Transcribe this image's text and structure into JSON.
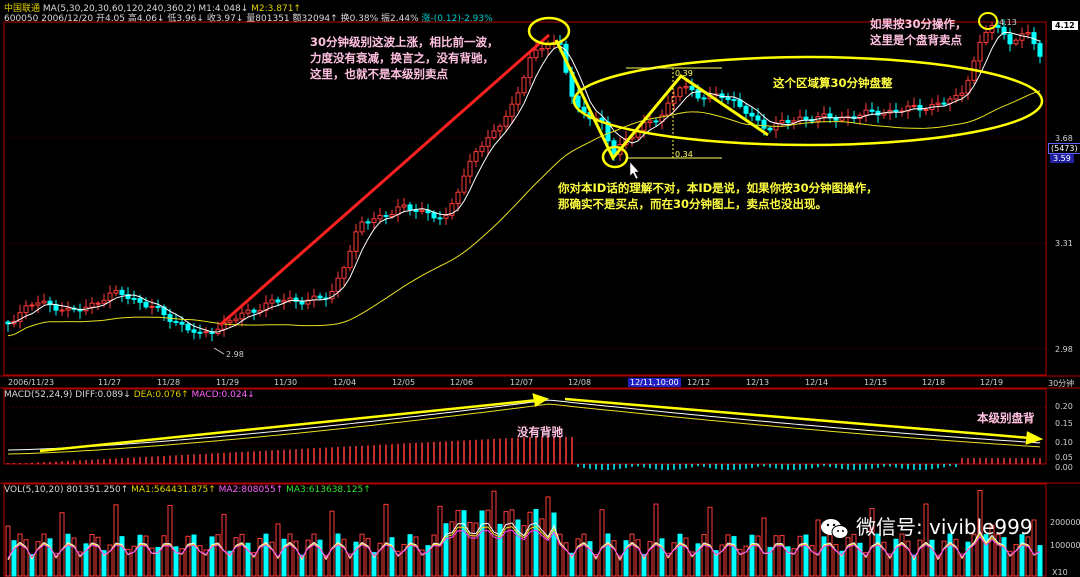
{
  "header": {
    "stock_name": "中国联通",
    "ma_label": "MA(5,30,20,30,60,120,240,360,2)",
    "m1": "M1:4.048↓",
    "m2": "M2:3.871↑",
    "code_date": "600050 2006/12/20",
    "open": "开4.05",
    "high": "高4.06↓",
    "low": "低3.96↓",
    "close": "收3.97↓",
    "volume": "量801351",
    "amount": "额32094↑",
    "turnover": "换0.38%",
    "amplitude": "振2.44%",
    "change": "涨-(0.12)-2.93%"
  },
  "price_axis": {
    "labels": [
      "4.12",
      "3.68",
      "3.59",
      "3.31",
      "2.98"
    ],
    "boxed": "(5473)"
  },
  "price_marks": {
    "high": "4.13",
    "low": "2.98",
    "swing_top": "0.39",
    "swing_bottom": "0.34"
  },
  "date_axis": {
    "labels": [
      "2006/11/23",
      "11/27",
      "11/28",
      "11/29",
      "11/30",
      "12/04",
      "12/05",
      "12/06",
      "12/07",
      "12/08",
      "12/11,10:00",
      "12/12",
      "12/13",
      "12/14",
      "12/15",
      "12/18",
      "12/19"
    ],
    "period": "30分钟"
  },
  "macd": {
    "title": "MACD(52,24,9)",
    "diff": "DIFF:0.089↓",
    "dea": "DEA:0.076↑",
    "macd": "MACD:0.024↓",
    "axis": [
      "0.20",
      "0.15",
      "0.10",
      "0.05",
      "0.00"
    ]
  },
  "vol": {
    "title": "VOL(5,10,20)",
    "value": "801351.250↑",
    "ma1": "MA1:564431.875↑",
    "ma2": "MA2:808055↑",
    "ma3": "MA3:613638.125↑",
    "axis": [
      "200000",
      "100000"
    ],
    "unit": "X10"
  },
  "annotations": {
    "left": [
      "30分钟级别这波上涨，相比前一波，",
      "力度没有衰减，换言之，没有背驰，",
      "这里，也就不是本级别卖点"
    ],
    "middle": [
      "你对本ID话的理解不对，本ID是说，如果你按30分钟图操作，",
      "那确实不是买点，而在30分钟图上，卖点也没出现。"
    ],
    "zone": "这个区域算30分钟盘整",
    "top_right": [
      "如果按30分操作，",
      "这里是个盘背卖点"
    ],
    "no_divergence": "没有背驰",
    "level_divergence": "本级别盘背"
  },
  "watermark": "微信号: vivible999",
  "colors": {
    "up": "#ff3b3b",
    "down": "#00ffff",
    "ma_white": "#ffffff",
    "ma_yellow": "#e8e020",
    "highlight": "#ffff00",
    "trend_red": "#ff2020"
  },
  "chart_data": {
    "type": "candlestick",
    "ticker": "600050",
    "name": "中国联通",
    "period": "30分钟",
    "last_bar": {
      "open": 4.05,
      "high": 4.06,
      "low": 3.96,
      "close": 3.97,
      "volume": 801351
    },
    "price_labels": [
      4.12,
      3.68,
      3.59,
      3.31,
      2.98
    ],
    "swing_low": 2.98,
    "swing_high": 4.13,
    "macd_params": [
      52,
      24,
      9
    ],
    "macd_last": {
      "diff": 0.089,
      "dea": 0.076,
      "macd": 0.024
    },
    "vol_ma": {
      "ma1": 564431.875,
      "ma2": 808055,
      "ma3": 613638.125
    }
  }
}
